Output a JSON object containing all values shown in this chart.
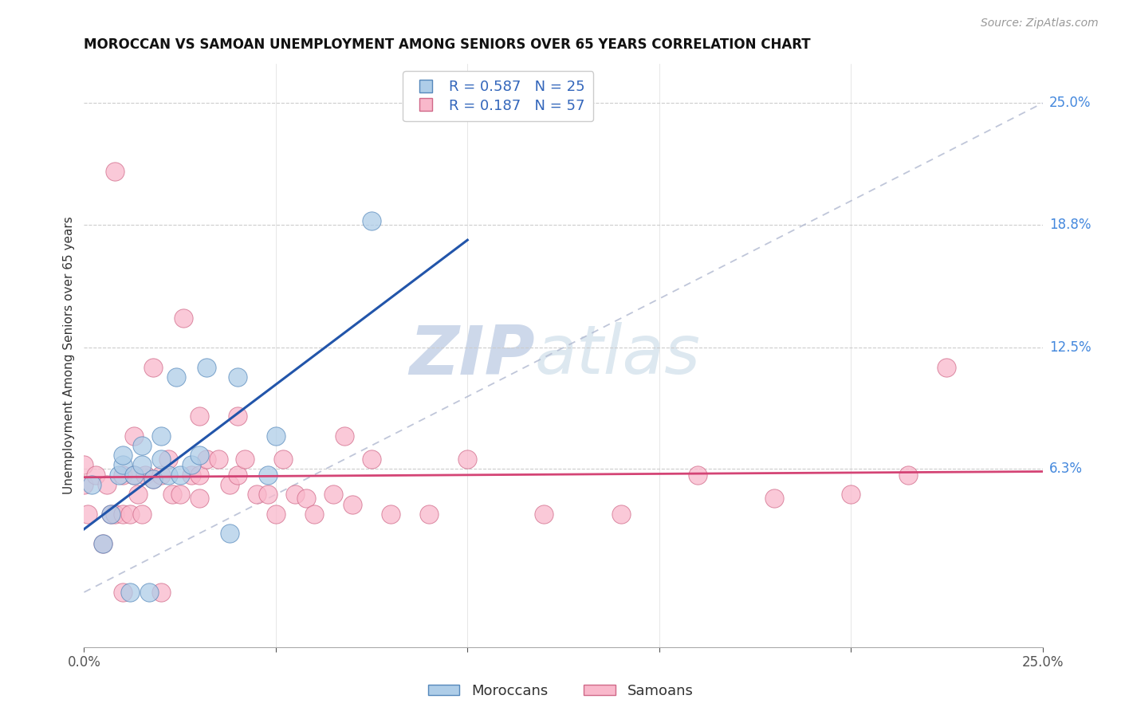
{
  "title": "MOROCCAN VS SAMOAN UNEMPLOYMENT AMONG SENIORS OVER 65 YEARS CORRELATION CHART",
  "source": "Source: ZipAtlas.com",
  "ylabel": "Unemployment Among Seniors over 65 years",
  "xlim": [
    0,
    0.25
  ],
  "ylim": [
    -0.028,
    0.27
  ],
  "ytick_positions": [
    0.063,
    0.125,
    0.188,
    0.25
  ],
  "ytick_labels": [
    "6.3%",
    "12.5%",
    "18.8%",
    "25.0%"
  ],
  "watermark_zip": "ZIP",
  "watermark_atlas": "atlas",
  "moroccan_color": "#aecde8",
  "samoan_color": "#f9b8cb",
  "moroccan_edge_color": "#5588bb",
  "samoan_edge_color": "#d06888",
  "moroccan_line_color": "#2255aa",
  "samoan_line_color": "#d44475",
  "legend_moroccan_R": "0.587",
  "legend_moroccan_N": "25",
  "legend_samoan_R": "0.187",
  "legend_samoan_N": "57",
  "moroccans_x": [
    0.002,
    0.005,
    0.007,
    0.009,
    0.01,
    0.01,
    0.012,
    0.013,
    0.015,
    0.015,
    0.017,
    0.018,
    0.02,
    0.02,
    0.022,
    0.024,
    0.025,
    0.028,
    0.03,
    0.032,
    0.038,
    0.04,
    0.048,
    0.05,
    0.075
  ],
  "moroccans_y": [
    0.055,
    0.025,
    0.04,
    0.06,
    0.065,
    0.07,
    0.0,
    0.06,
    0.065,
    0.075,
    0.0,
    0.058,
    0.068,
    0.08,
    0.06,
    0.11,
    0.06,
    0.065,
    0.07,
    0.115,
    0.03,
    0.11,
    0.06,
    0.08,
    0.19
  ],
  "samoans_x": [
    0.0,
    0.0,
    0.001,
    0.003,
    0.005,
    0.006,
    0.007,
    0.008,
    0.008,
    0.01,
    0.01,
    0.01,
    0.012,
    0.013,
    0.013,
    0.014,
    0.015,
    0.016,
    0.018,
    0.018,
    0.02,
    0.02,
    0.022,
    0.023,
    0.025,
    0.026,
    0.028,
    0.03,
    0.03,
    0.03,
    0.032,
    0.035,
    0.038,
    0.04,
    0.04,
    0.042,
    0.045,
    0.048,
    0.05,
    0.052,
    0.055,
    0.058,
    0.06,
    0.065,
    0.068,
    0.07,
    0.075,
    0.08,
    0.09,
    0.1,
    0.12,
    0.14,
    0.16,
    0.18,
    0.2,
    0.215,
    0.225
  ],
  "samoans_y": [
    0.055,
    0.065,
    0.04,
    0.06,
    0.025,
    0.055,
    0.04,
    0.04,
    0.215,
    0.0,
    0.04,
    0.06,
    0.04,
    0.06,
    0.08,
    0.05,
    0.04,
    0.06,
    0.058,
    0.115,
    0.0,
    0.06,
    0.068,
    0.05,
    0.05,
    0.14,
    0.06,
    0.048,
    0.06,
    0.09,
    0.068,
    0.068,
    0.055,
    0.06,
    0.09,
    0.068,
    0.05,
    0.05,
    0.04,
    0.068,
    0.05,
    0.048,
    0.04,
    0.05,
    0.08,
    0.045,
    0.068,
    0.04,
    0.04,
    0.068,
    0.04,
    0.04,
    0.06,
    0.048,
    0.05,
    0.06,
    0.115
  ]
}
